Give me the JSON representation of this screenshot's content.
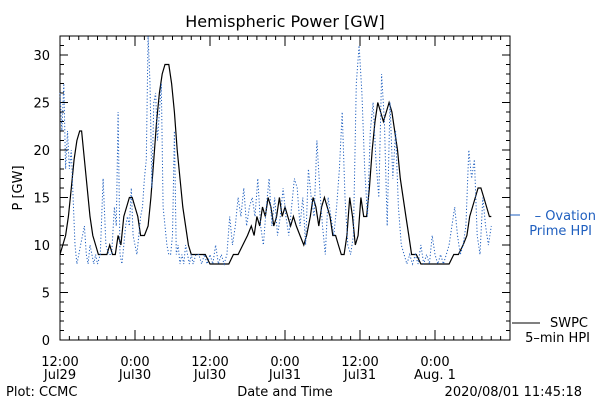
{
  "chart_data": {
    "type": "line",
    "title": "Hemispheric Power [GW]",
    "ylabel": "P [GW]",
    "xlabel": "Date and Time",
    "ylim": [
      0,
      32
    ],
    "yticks": [
      0,
      5,
      10,
      15,
      20,
      25,
      30
    ],
    "xlim_hours": [
      12,
      60
    ],
    "xticks": [
      {
        "h": 12,
        "line1": "12:00",
        "line2": "Jul29"
      },
      {
        "h": 20,
        "line1": "0:00",
        "line2": "Jul30"
      },
      {
        "h": 28,
        "line1": "12:00",
        "line2": "Jul30"
      },
      {
        "h": 36,
        "line1": "0:00",
        "line2": "Jul31"
      },
      {
        "h": 44,
        "line1": "12:00",
        "line2": "Jul31"
      },
      {
        "h": 52,
        "line1": "0:00",
        "line2": "Aug. 1"
      }
    ],
    "legend": [
      {
        "name": "– Ovation",
        "name2": "Prime HPI",
        "color": "#1f5fbf",
        "style": "dotted"
      },
      {
        "name": "SWPC",
        "name2": "5–min HPI",
        "color": "#000000",
        "style": "solid"
      }
    ],
    "series": [
      {
        "name": "SWPC 5-min HPI",
        "color": "#000000",
        "style": "solid",
        "points": [
          [
            12.0,
            9
          ],
          [
            12.3,
            10
          ],
          [
            12.6,
            11
          ],
          [
            12.9,
            13
          ],
          [
            13.2,
            16
          ],
          [
            13.5,
            19
          ],
          [
            13.8,
            21
          ],
          [
            14.1,
            22
          ],
          [
            14.3,
            22
          ],
          [
            14.6,
            19
          ],
          [
            14.9,
            16
          ],
          [
            15.2,
            13
          ],
          [
            15.5,
            11
          ],
          [
            15.8,
            10
          ],
          [
            16.1,
            9
          ],
          [
            16.7,
            9
          ],
          [
            17.0,
            9
          ],
          [
            17.3,
            10
          ],
          [
            17.6,
            9
          ],
          [
            17.9,
            9
          ],
          [
            18.2,
            11
          ],
          [
            18.5,
            10
          ],
          [
            18.8,
            13
          ],
          [
            19.1,
            14
          ],
          [
            19.4,
            15
          ],
          [
            19.7,
            15
          ],
          [
            20.0,
            14
          ],
          [
            20.3,
            13
          ],
          [
            20.6,
            11
          ],
          [
            21.0,
            11
          ],
          [
            21.4,
            12
          ],
          [
            21.7,
            15
          ],
          [
            22.0,
            19
          ],
          [
            22.3,
            23
          ],
          [
            22.6,
            26
          ],
          [
            22.9,
            28
          ],
          [
            23.2,
            29
          ],
          [
            23.6,
            29
          ],
          [
            23.9,
            27
          ],
          [
            24.2,
            24
          ],
          [
            24.5,
            20
          ],
          [
            24.8,
            17
          ],
          [
            25.1,
            14
          ],
          [
            25.4,
            12
          ],
          [
            25.7,
            10
          ],
          [
            26.0,
            9
          ],
          [
            27.0,
            9
          ],
          [
            27.5,
            9
          ],
          [
            28.0,
            8
          ],
          [
            29.0,
            8
          ],
          [
            30.0,
            8
          ],
          [
            30.5,
            9
          ],
          [
            31.0,
            9
          ],
          [
            31.5,
            10
          ],
          [
            32.0,
            11
          ],
          [
            32.4,
            12
          ],
          [
            32.7,
            11
          ],
          [
            33.0,
            13
          ],
          [
            33.3,
            12
          ],
          [
            33.6,
            14
          ],
          [
            33.9,
            13
          ],
          [
            34.2,
            15
          ],
          [
            34.5,
            14
          ],
          [
            34.8,
            12
          ],
          [
            35.1,
            13
          ],
          [
            35.4,
            15
          ],
          [
            35.7,
            13
          ],
          [
            36.0,
            14
          ],
          [
            36.3,
            13
          ],
          [
            36.6,
            12
          ],
          [
            36.9,
            13
          ],
          [
            37.2,
            12
          ],
          [
            37.6,
            11
          ],
          [
            38.0,
            10
          ],
          [
            38.3,
            11
          ],
          [
            38.7,
            13
          ],
          [
            39.0,
            15
          ],
          [
            39.3,
            14
          ],
          [
            39.6,
            12
          ],
          [
            39.9,
            14
          ],
          [
            40.2,
            15
          ],
          [
            40.5,
            14
          ],
          [
            40.8,
            13
          ],
          [
            41.1,
            11
          ],
          [
            41.4,
            11
          ],
          [
            41.7,
            10
          ],
          [
            42.0,
            9
          ],
          [
            42.3,
            9
          ],
          [
            42.6,
            11
          ],
          [
            42.9,
            15
          ],
          [
            43.2,
            13
          ],
          [
            43.5,
            10
          ],
          [
            43.8,
            11
          ],
          [
            44.1,
            15
          ],
          [
            44.4,
            13
          ],
          [
            44.7,
            13
          ],
          [
            45.0,
            16
          ],
          [
            45.3,
            20
          ],
          [
            45.6,
            23
          ],
          [
            45.9,
            25
          ],
          [
            46.2,
            24
          ],
          [
            46.5,
            23
          ],
          [
            46.8,
            24
          ],
          [
            47.1,
            25
          ],
          [
            47.4,
            24
          ],
          [
            47.7,
            22
          ],
          [
            48.0,
            20
          ],
          [
            48.3,
            17
          ],
          [
            48.6,
            15
          ],
          [
            48.9,
            13
          ],
          [
            49.2,
            11
          ],
          [
            49.5,
            9
          ],
          [
            50.0,
            9
          ],
          [
            50.5,
            8
          ],
          [
            51.5,
            8
          ],
          [
            52.5,
            8
          ],
          [
            53.5,
            8
          ],
          [
            54.0,
            9
          ],
          [
            54.5,
            9
          ],
          [
            55.0,
            10
          ],
          [
            55.4,
            11
          ],
          [
            55.7,
            13
          ],
          [
            56.0,
            14
          ],
          [
            56.3,
            15
          ],
          [
            56.6,
            16
          ],
          [
            56.9,
            16
          ],
          [
            57.2,
            15
          ],
          [
            57.5,
            14
          ],
          [
            57.8,
            13
          ],
          [
            58.0,
            13
          ]
        ]
      },
      {
        "name": "Ovation Prime HPI",
        "color": "#1f5fbf",
        "style": "dotted",
        "points": [
          [
            12.0,
            26
          ],
          [
            12.2,
            22
          ],
          [
            12.4,
            27
          ],
          [
            12.6,
            18
          ],
          [
            12.8,
            22
          ],
          [
            13.0,
            18
          ],
          [
            13.2,
            20
          ],
          [
            13.4,
            15
          ],
          [
            13.6,
            10
          ],
          [
            13.8,
            8
          ],
          [
            14.0,
            9
          ],
          [
            14.2,
            10
          ],
          [
            14.4,
            11
          ],
          [
            14.6,
            12
          ],
          [
            14.8,
            9
          ],
          [
            15.0,
            8
          ],
          [
            15.2,
            10
          ],
          [
            15.4,
            9
          ],
          [
            15.6,
            8
          ],
          [
            15.8,
            9
          ],
          [
            16.0,
            8
          ],
          [
            16.3,
            9
          ],
          [
            16.6,
            17
          ],
          [
            16.9,
            10
          ],
          [
            17.2,
            9
          ],
          [
            17.5,
            9
          ],
          [
            17.8,
            14
          ],
          [
            18.0,
            12
          ],
          [
            18.2,
            24
          ],
          [
            18.4,
            9
          ],
          [
            18.6,
            8
          ],
          [
            18.8,
            10
          ],
          [
            19.0,
            12
          ],
          [
            19.2,
            13
          ],
          [
            19.4,
            12
          ],
          [
            19.6,
            16
          ],
          [
            19.8,
            11
          ],
          [
            20.0,
            10
          ],
          [
            20.2,
            9
          ],
          [
            20.4,
            11
          ],
          [
            20.6,
            13
          ],
          [
            20.8,
            14
          ],
          [
            21.0,
            17
          ],
          [
            21.2,
            19
          ],
          [
            21.4,
            32
          ],
          [
            21.6,
            27
          ],
          [
            21.8,
            16
          ],
          [
            22.0,
            25
          ],
          [
            22.2,
            26
          ],
          [
            22.4,
            21
          ],
          [
            22.6,
            24
          ],
          [
            22.8,
            27
          ],
          [
            23.0,
            14
          ],
          [
            23.2,
            12
          ],
          [
            23.4,
            10
          ],
          [
            23.6,
            9
          ],
          [
            23.8,
            9
          ],
          [
            24.0,
            11
          ],
          [
            24.2,
            22
          ],
          [
            24.4,
            9
          ],
          [
            24.6,
            10
          ],
          [
            24.8,
            8
          ],
          [
            25.0,
            9
          ],
          [
            25.2,
            8
          ],
          [
            25.4,
            10
          ],
          [
            25.6,
            9
          ],
          [
            25.8,
            8
          ],
          [
            26.0,
            9
          ],
          [
            26.2,
            8
          ],
          [
            26.5,
            9
          ],
          [
            26.8,
            9
          ],
          [
            27.1,
            8
          ],
          [
            27.4,
            9
          ],
          [
            27.7,
            8
          ],
          [
            28.0,
            9
          ],
          [
            28.3,
            8
          ],
          [
            28.6,
            10
          ],
          [
            28.9,
            8
          ],
          [
            29.2,
            9
          ],
          [
            29.5,
            8
          ],
          [
            29.8,
            9
          ],
          [
            30.1,
            13
          ],
          [
            30.4,
            10
          ],
          [
            30.7,
            12
          ],
          [
            31.0,
            15
          ],
          [
            31.3,
            13
          ],
          [
            31.6,
            16
          ],
          [
            31.9,
            12
          ],
          [
            32.2,
            14
          ],
          [
            32.5,
            15
          ],
          [
            32.8,
            13
          ],
          [
            33.1,
            17
          ],
          [
            33.4,
            12
          ],
          [
            33.7,
            10
          ],
          [
            34.0,
            14
          ],
          [
            34.3,
            17
          ],
          [
            34.6,
            12
          ],
          [
            34.9,
            15
          ],
          [
            35.2,
            11
          ],
          [
            35.5,
            13
          ],
          [
            35.8,
            16
          ],
          [
            36.1,
            13
          ],
          [
            36.4,
            11
          ],
          [
            36.7,
            14
          ],
          [
            37.0,
            17
          ],
          [
            37.3,
            16
          ],
          [
            37.6,
            12
          ],
          [
            37.9,
            15
          ],
          [
            38.2,
            10
          ],
          [
            38.5,
            18
          ],
          [
            38.8,
            15
          ],
          [
            39.1,
            13
          ],
          [
            39.4,
            21
          ],
          [
            39.7,
            16
          ],
          [
            40.0,
            12
          ],
          [
            40.3,
            9
          ],
          [
            40.6,
            15
          ],
          [
            40.9,
            13
          ],
          [
            41.2,
            11
          ],
          [
            41.5,
            14
          ],
          [
            41.8,
            18
          ],
          [
            42.1,
            24
          ],
          [
            42.4,
            15
          ],
          [
            42.7,
            10
          ],
          [
            43.0,
            9
          ],
          [
            43.3,
            11
          ],
          [
            43.6,
            27
          ],
          [
            43.9,
            31
          ],
          [
            44.2,
            26
          ],
          [
            44.5,
            18
          ],
          [
            44.8,
            13
          ],
          [
            45.1,
            22
          ],
          [
            45.4,
            25
          ],
          [
            45.7,
            19
          ],
          [
            46.0,
            15
          ],
          [
            46.3,
            28
          ],
          [
            46.6,
            23
          ],
          [
            46.9,
            12
          ],
          [
            47.2,
            25
          ],
          [
            47.5,
            17
          ],
          [
            47.8,
            22
          ],
          [
            48.1,
            14
          ],
          [
            48.4,
            10
          ],
          [
            48.7,
            9
          ],
          [
            49.0,
            8
          ],
          [
            49.3,
            9
          ],
          [
            49.6,
            8
          ],
          [
            49.9,
            9
          ],
          [
            50.2,
            8
          ],
          [
            50.5,
            10
          ],
          [
            50.8,
            8
          ],
          [
            51.1,
            9
          ],
          [
            51.4,
            8
          ],
          [
            51.7,
            11
          ],
          [
            52.0,
            9
          ],
          [
            52.3,
            8
          ],
          [
            52.6,
            9
          ],
          [
            52.9,
            8
          ],
          [
            53.2,
            9
          ],
          [
            53.5,
            10
          ],
          [
            53.8,
            12
          ],
          [
            54.1,
            14
          ],
          [
            54.4,
            11
          ],
          [
            54.7,
            9
          ],
          [
            55.0,
            10
          ],
          [
            55.3,
            12
          ],
          [
            55.6,
            20
          ],
          [
            55.9,
            17
          ],
          [
            56.2,
            19
          ],
          [
            56.5,
            11
          ],
          [
            56.8,
            9
          ],
          [
            57.1,
            15
          ],
          [
            57.4,
            12
          ],
          [
            57.7,
            10
          ],
          [
            58.0,
            12
          ]
        ]
      }
    ]
  },
  "footer": {
    "left": "Plot: CCMC",
    "timestamp": "2020/08/01 11:45:18"
  }
}
